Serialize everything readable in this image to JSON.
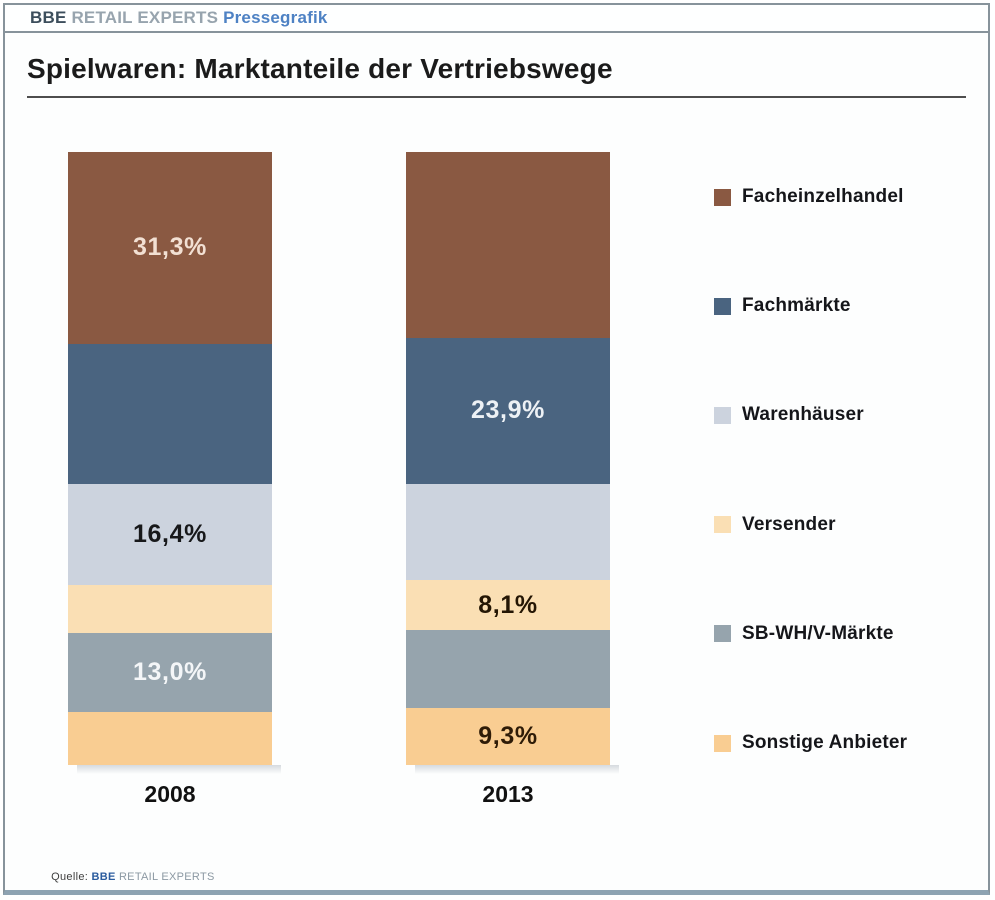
{
  "header": {
    "brand_primary": "BBE",
    "brand_secondary": "RETAIL EXPERTS",
    "brand_tagline": "Pressegrafik"
  },
  "title": "Spielwaren: Marktanteile der Vertriebswege",
  "source": {
    "label": "Quelle:",
    "brand_primary": "BBE",
    "brand_secondary": "RETAIL EXPERTS"
  },
  "chart_data": {
    "type": "bar",
    "stacked": true,
    "orientation": "vertical",
    "unit": "%",
    "ylim": [
      0,
      100
    ],
    "legend_position": "right",
    "categories": [
      "2008",
      "2013"
    ],
    "series": [
      {
        "name": "Facheinzelhandel",
        "color": "#8A5942",
        "values": [
          31.3,
          30.3
        ],
        "visible_labels": [
          "31,3%",
          ""
        ],
        "label_text_color": "#F2E0D3"
      },
      {
        "name": "Fachmärkte",
        "color": "#4A6480",
        "values": [
          22.9,
          23.9
        ],
        "visible_labels": [
          "",
          "23,9%"
        ],
        "label_text_color": "#EDF1F5"
      },
      {
        "name": "Warenhäuser",
        "color": "#CCD3DE",
        "values": [
          16.4,
          15.7
        ],
        "visible_labels": [
          "16,4%",
          ""
        ],
        "label_text_color": "#17181A"
      },
      {
        "name": "Versender",
        "color": "#FADFB4",
        "values": [
          7.8,
          8.1
        ],
        "visible_labels": [
          "",
          "8,1%"
        ],
        "label_text_color": "#241604"
      },
      {
        "name": "SB-WH/V-Märkte",
        "color": "#96A4AD",
        "values": [
          13.0,
          12.7
        ],
        "visible_labels": [
          "13,0%",
          ""
        ],
        "label_text_color": "#F4F6F8"
      },
      {
        "name": "Sonstige Anbieter",
        "color": "#F9CD92",
        "values": [
          8.6,
          9.3
        ],
        "visible_labels": [
          "",
          "9,3%"
        ],
        "label_text_color": "#2E1B07"
      }
    ]
  }
}
